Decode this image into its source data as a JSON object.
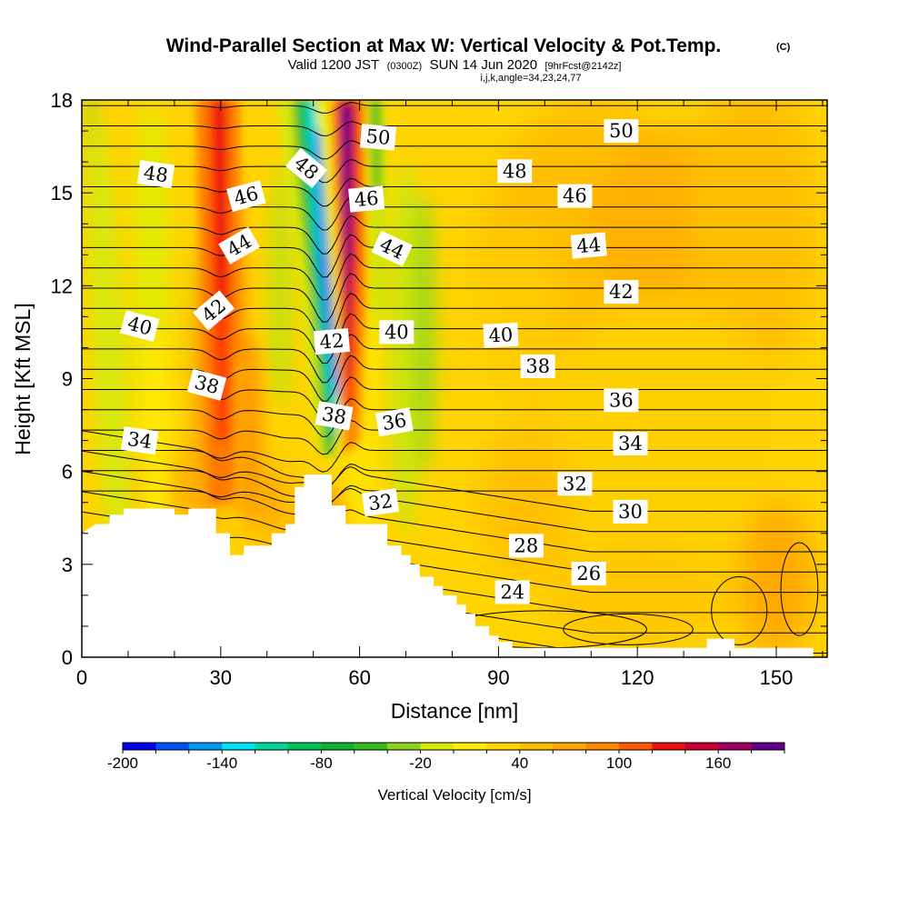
{
  "chart_data": {
    "type": "heatmap",
    "title": "Wind-Parallel Section at Max W: Vertical Velocity & Pot.Temp.",
    "title_mark": "(C)",
    "subtitle_parts": [
      "Valid 1200 JST",
      "(0300Z)",
      "SUN 14 Jun 2020",
      "[9hrFcst@2142z]"
    ],
    "subtitle2": "i,j,k,angle=34,23,24,77",
    "xlabel": "Distance [nm]",
    "ylabel": "Height [Kft MSL]",
    "xlim": [
      0,
      161
    ],
    "ylim": [
      0,
      18
    ],
    "x_ticks": [
      0,
      30,
      60,
      90,
      120,
      150
    ],
    "y_ticks": [
      0,
      3,
      6,
      9,
      12,
      15,
      18
    ],
    "colorbar": {
      "title": "Vertical Velocity [cm/s]",
      "ticks": [
        "-200",
        "-140",
        "-80",
        "-20",
        "40",
        "100",
        "160"
      ],
      "colors": [
        "#0000f5",
        "#0050f5",
        "#0096f5",
        "#00e0f0",
        "#00d49a",
        "#00c060",
        "#10b030",
        "#3aba20",
        "#90d020",
        "#d8e80a",
        "#ffee00",
        "#ffd400",
        "#ffbf00",
        "#ffa600",
        "#ff8800",
        "#ff5a00",
        "#ee1010",
        "#c80030",
        "#a00060",
        "#60008a"
      ]
    },
    "terrain_kft": [
      [
        0,
        4.0
      ],
      [
        3,
        4.3
      ],
      [
        6,
        4.3
      ],
      [
        6,
        4.6
      ],
      [
        9,
        4.6
      ],
      [
        9,
        4.8
      ],
      [
        20,
        4.8
      ],
      [
        20,
        4.6
      ],
      [
        23,
        4.6
      ],
      [
        23,
        4.8
      ],
      [
        29,
        4.8
      ],
      [
        29,
        4.0
      ],
      [
        32,
        4.0
      ],
      [
        32,
        3.3
      ],
      [
        35,
        3.3
      ],
      [
        35,
        3.6
      ],
      [
        41,
        3.6
      ],
      [
        41,
        4.0
      ],
      [
        44,
        4.0
      ],
      [
        44,
        4.3
      ],
      [
        46,
        4.3
      ],
      [
        46,
        5.5
      ],
      [
        48,
        5.5
      ],
      [
        48,
        5.9
      ],
      [
        54,
        5.9
      ],
      [
        54,
        4.9
      ],
      [
        57,
        4.9
      ],
      [
        57,
        4.3
      ],
      [
        66,
        4.3
      ],
      [
        66,
        3.6
      ],
      [
        69,
        3.6
      ],
      [
        69,
        3.3
      ],
      [
        71,
        3.3
      ],
      [
        71,
        3.0
      ],
      [
        73,
        3.0
      ],
      [
        73,
        2.6
      ],
      [
        76,
        2.6
      ],
      [
        76,
        2.3
      ],
      [
        78,
        2.3
      ],
      [
        78,
        2.0
      ],
      [
        81,
        2.0
      ],
      [
        81,
        1.7
      ],
      [
        83,
        1.7
      ],
      [
        83,
        1.4
      ],
      [
        85,
        1.4
      ],
      [
        85,
        1.0
      ],
      [
        88,
        1.0
      ],
      [
        88,
        0.7
      ],
      [
        90,
        0.7
      ],
      [
        90,
        0.5
      ],
      [
        93,
        0.5
      ],
      [
        93,
        0.3
      ],
      [
        135,
        0.3
      ],
      [
        135,
        0.6
      ],
      [
        141,
        0.6
      ],
      [
        141,
        0.3
      ],
      [
        158,
        0.3
      ],
      [
        158,
        0
      ],
      [
        0,
        0
      ]
    ],
    "theta_isentropes_c": [
      23,
      24,
      25,
      26,
      27,
      28,
      29,
      30,
      31,
      32,
      33,
      34,
      35,
      36,
      37,
      38,
      39,
      40,
      41,
      42,
      43,
      44,
      45,
      46,
      47,
      48,
      49,
      50,
      51
    ],
    "contour_labels": [
      {
        "text": "50",
        "x": 64,
        "y": 16.8,
        "angle": 5
      },
      {
        "text": "50",
        "x": 116.5,
        "y": 17.0,
        "angle": 0
      },
      {
        "text": "48",
        "x": 16,
        "y": 15.6,
        "angle": 8
      },
      {
        "text": "48",
        "x": 48.5,
        "y": 15.8,
        "angle": 40
      },
      {
        "text": "48",
        "x": 93.5,
        "y": 15.7,
        "angle": 0
      },
      {
        "text": "46",
        "x": 35.5,
        "y": 14.9,
        "angle": -15
      },
      {
        "text": "46",
        "x": 61.5,
        "y": 14.8,
        "angle": -5
      },
      {
        "text": "46",
        "x": 106.5,
        "y": 14.9,
        "angle": 0
      },
      {
        "text": "44",
        "x": 34,
        "y": 13.3,
        "angle": -30
      },
      {
        "text": "44",
        "x": 67,
        "y": 13.2,
        "angle": 25
      },
      {
        "text": "44",
        "x": 109.5,
        "y": 13.3,
        "angle": -5
      },
      {
        "text": "42",
        "x": 28.5,
        "y": 11.2,
        "angle": -40
      },
      {
        "text": "42",
        "x": 116.5,
        "y": 11.8,
        "angle": 0
      },
      {
        "text": "42",
        "x": 54,
        "y": 10.2,
        "angle": -5
      },
      {
        "text": "40",
        "x": 12.5,
        "y": 10.7,
        "angle": 15
      },
      {
        "text": "40",
        "x": 68,
        "y": 10.5,
        "angle": 0
      },
      {
        "text": "40",
        "x": 90.5,
        "y": 10.4,
        "angle": -3
      },
      {
        "text": "38",
        "x": 27,
        "y": 8.8,
        "angle": 15
      },
      {
        "text": "38",
        "x": 98.5,
        "y": 9.4,
        "angle": 0
      },
      {
        "text": "38",
        "x": 54.5,
        "y": 7.8,
        "angle": 10
      },
      {
        "text": "36",
        "x": 67.5,
        "y": 7.6,
        "angle": -10
      },
      {
        "text": "36",
        "x": 116.5,
        "y": 8.3,
        "angle": 0
      },
      {
        "text": "34",
        "x": 12.5,
        "y": 7.0,
        "angle": 8
      },
      {
        "text": "34",
        "x": 118.5,
        "y": 6.9,
        "angle": 0
      },
      {
        "text": "32",
        "x": 64.5,
        "y": 5.0,
        "angle": -8
      },
      {
        "text": "32",
        "x": 106.5,
        "y": 5.6,
        "angle": 0
      },
      {
        "text": "30",
        "x": 118.5,
        "y": 4.7,
        "angle": 0
      },
      {
        "text": "28",
        "x": 96,
        "y": 3.6,
        "angle": 0
      },
      {
        "text": "26",
        "x": 109.5,
        "y": 2.7,
        "angle": 0
      },
      {
        "text": "24",
        "x": 93,
        "y": 2.1,
        "angle": 0
      }
    ]
  }
}
